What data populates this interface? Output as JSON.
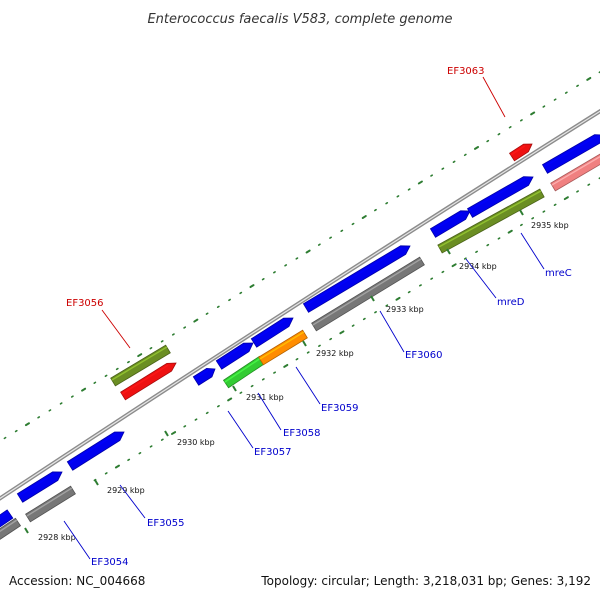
{
  "title": "Enterococcus faecalis V583, complete genome",
  "footer": {
    "accession": "Accession: NC_004668",
    "summary": "Topology: circular; Length: 3,218,031 bp; Genes: 3,192"
  },
  "colors": {
    "backbone": "#999999",
    "gc_dots": "#2e7d32",
    "forward_gene": "#0000ee",
    "rrna_like": "#6b8e23",
    "gray_feature": "#777777",
    "red_feature": "#ee1111",
    "orange_feature": "#ff8c00",
    "green_feature": "#33cc33",
    "pink_feature": "#f08080",
    "label_blue": "#0000cc",
    "label_red": "#cc0000"
  },
  "scale_ticks": [
    {
      "label": "2928 kbp"
    },
    {
      "label": "2929 kbp"
    },
    {
      "label": "2930 kbp"
    },
    {
      "label": "2931 kbp"
    },
    {
      "label": "2932 kbp"
    },
    {
      "label": "2933 kbp"
    },
    {
      "label": "2934 kbp"
    },
    {
      "label": "2935 kbp"
    }
  ],
  "gene_labels": [
    {
      "label": "EF3054",
      "color": "label_blue"
    },
    {
      "label": "EF3055",
      "color": "label_blue"
    },
    {
      "label": "EF3056",
      "color": "label_red"
    },
    {
      "label": "EF3057",
      "color": "label_blue"
    },
    {
      "label": "EF3058",
      "color": "label_blue"
    },
    {
      "label": "EF3059",
      "color": "label_blue"
    },
    {
      "label": "EF3060",
      "color": "label_blue"
    },
    {
      "label": "mreD",
      "color": "label_blue"
    },
    {
      "label": "mreC",
      "color": "label_blue"
    },
    {
      "label": "EF3063",
      "color": "label_red"
    }
  ],
  "features": [
    {
      "name": "forward-gene",
      "color": "forward_gene"
    },
    {
      "name": "forward-gene",
      "color": "forward_gene"
    },
    {
      "name": "forward-gene",
      "color": "forward_gene"
    },
    {
      "name": "gray-feature",
      "color": "gray_feature"
    },
    {
      "name": "gray-feature",
      "color": "gray_feature"
    },
    {
      "name": "olive-feature",
      "color": "rrna_like"
    },
    {
      "name": "red-feature",
      "color": "red_feature"
    },
    {
      "name": "forward-gene",
      "color": "forward_gene"
    },
    {
      "name": "forward-gene",
      "color": "forward_gene"
    },
    {
      "name": "green-feature",
      "color": "green_feature"
    },
    {
      "name": "forward-gene",
      "color": "forward_gene"
    },
    {
      "name": "orange-feature",
      "color": "orange_feature"
    },
    {
      "name": "forward-gene",
      "color": "forward_gene"
    },
    {
      "name": "gray-feature",
      "color": "gray_feature"
    },
    {
      "name": "forward-gene",
      "color": "forward_gene"
    },
    {
      "name": "forward-gene",
      "color": "forward_gene"
    },
    {
      "name": "olive-feature",
      "color": "rrna_like"
    },
    {
      "name": "red-feature",
      "color": "red_feature"
    },
    {
      "name": "forward-gene",
      "color": "forward_gene"
    },
    {
      "name": "pink-feature",
      "color": "pink_feature"
    }
  ]
}
